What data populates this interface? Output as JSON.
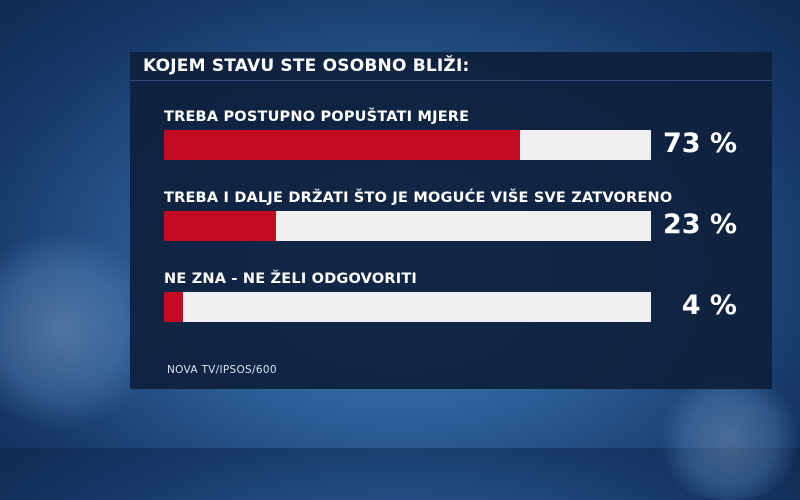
{
  "chart_data": {
    "type": "bar",
    "title": "KOJEM STAVU STE OSOBNO BLIŽI:",
    "categories": [
      "TREBA POSTUPNO POPUŠTATI MJERE",
      "TREBA I DALJE DRŽATI ŠTO JE MOGUĆE VIŠE SVE ZATVORENO",
      "NE ZNA - NE ŽELI ODGOVORITI"
    ],
    "values": [
      73,
      23,
      4
    ],
    "value_labels": [
      "73 %",
      "23 %",
      "4 %"
    ],
    "ylim": [
      0,
      100
    ],
    "source": "NOVA TV/IPSOS/600",
    "colors": {
      "bar": "#c20a21",
      "track": "#efefef",
      "panel": "#0e203c"
    }
  }
}
